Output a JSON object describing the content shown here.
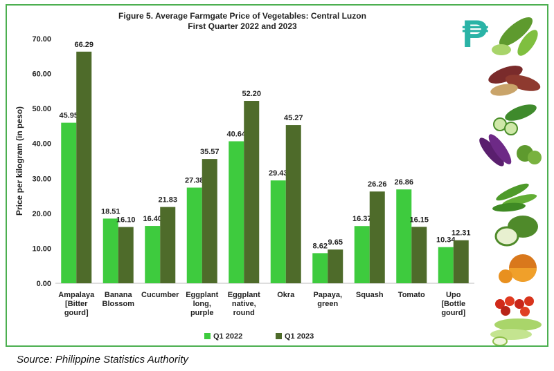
{
  "chart_data": {
    "type": "bar",
    "title": "Figure 5. Average Farmgate Price of Vegetables: Central Luzon",
    "subtitle": "First Quarter 2022 and 2023",
    "ylabel": "Price per kilogram (in peso)",
    "xlabel": "",
    "ylim": [
      0,
      70
    ],
    "yticks": [
      "0.00",
      "10.00",
      "20.00",
      "30.00",
      "40.00",
      "50.00",
      "60.00",
      "70.00"
    ],
    "categories": [
      [
        "Ampalaya",
        "[Bitter",
        "gourd]"
      ],
      [
        "Banana",
        "Blossom"
      ],
      [
        "Cucumber"
      ],
      [
        "Eggplant",
        "long,",
        "purple"
      ],
      [
        "Eggplant",
        "native,",
        "round"
      ],
      [
        "Okra"
      ],
      [
        "Papaya,",
        "green"
      ],
      [
        "Squash"
      ],
      [
        "Tomato"
      ],
      [
        "Upo",
        "[Bottle",
        "gourd]"
      ]
    ],
    "series": [
      {
        "name": "Q1 2022",
        "color": "#3ecb3e",
        "values": [
          45.95,
          18.51,
          16.4,
          27.38,
          40.64,
          29.43,
          8.62,
          16.37,
          26.86,
          10.34
        ]
      },
      {
        "name": "Q1 2023",
        "color": "#4e6b2a",
        "values": [
          66.29,
          16.1,
          21.83,
          35.57,
          52.2,
          45.27,
          9.65,
          26.26,
          16.15,
          12.31
        ]
      }
    ],
    "legend_position": "bottom",
    "grid": false
  },
  "source": "Source: Philippine Statistics Authority",
  "decor": {
    "currency_symbol": "₱",
    "currency_color": "#2ab3a6",
    "icons": [
      "bitter-gourd-icon",
      "banana-blossom-icon",
      "cucumber-icon",
      "eggplant-icon",
      "okra-icon",
      "papaya-icon",
      "squash-icon",
      "tomato-icon",
      "bottle-gourd-icon"
    ]
  }
}
